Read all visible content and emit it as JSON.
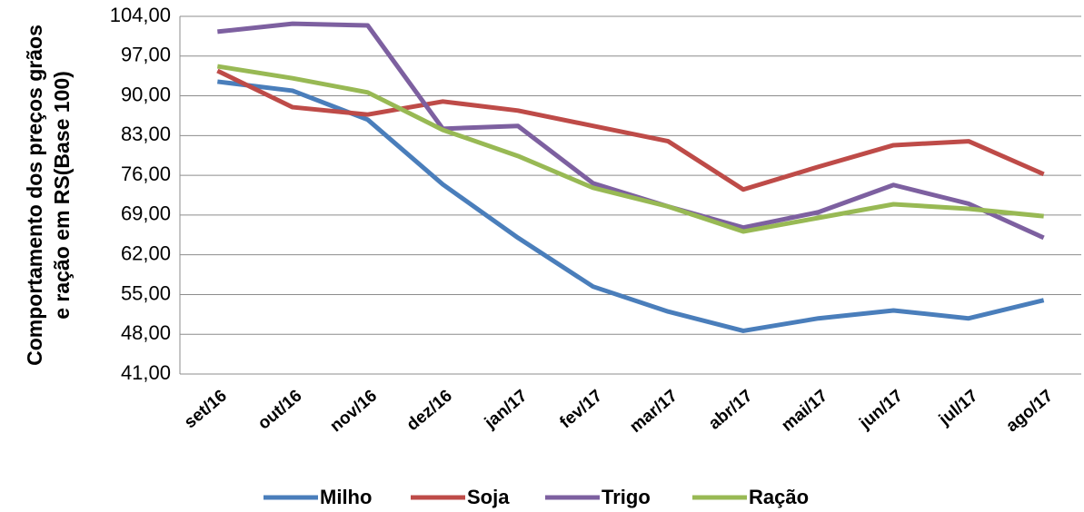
{
  "chart_data": {
    "type": "line",
    "y_label": [
      "Comportamento dos preços grãos",
      "e ração em RS(Base 100)"
    ],
    "categories": [
      "set/16",
      "out/16",
      "nov/16",
      "dez/16",
      "jan/17",
      "fev/17",
      "mar/17",
      "abr/17",
      "mai/17",
      "jun/17",
      "jul/17",
      "ago/17"
    ],
    "series": [
      {
        "name": "Milho",
        "color": "#4a7ebb",
        "values": [
          92.5,
          90.9,
          85.8,
          74.4,
          65,
          56.4,
          52,
          48.6,
          50.8,
          52.2,
          50.8,
          54
        ]
      },
      {
        "name": "Soja",
        "color": "#be4b48",
        "values": [
          94.4,
          88,
          86.7,
          89,
          87.4,
          84.7,
          82,
          73.5,
          77.5,
          81.3,
          82,
          76.2
        ]
      },
      {
        "name": "Trigo",
        "color": "#7d60a0",
        "values": [
          101.3,
          102.7,
          102.4,
          84.2,
          84.7,
          74.6,
          70.5,
          66.8,
          69.5,
          74.3,
          71,
          65
        ]
      },
      {
        "name": "Ração",
        "color": "#98b954",
        "values": [
          95.2,
          93.1,
          90.6,
          84,
          79.4,
          73.8,
          70.5,
          66.1,
          68.5,
          70.9,
          70.1,
          68.8
        ]
      }
    ],
    "ylim": [
      41,
      104
    ],
    "yticks": [
      {
        "value": 41,
        "label": "41,00"
      },
      {
        "value": 48,
        "label": "48,00"
      },
      {
        "value": 55,
        "label": "55,00"
      },
      {
        "value": 62,
        "label": "62,00"
      },
      {
        "value": 69,
        "label": "69,00"
      },
      {
        "value": 76,
        "label": "76,00"
      },
      {
        "value": 83,
        "label": "83,00"
      },
      {
        "value": 90,
        "label": "90,00"
      },
      {
        "value": 97,
        "label": "97,00"
      },
      {
        "value": 104,
        "label": "104,00"
      }
    ],
    "grid": true,
    "legend": "bottom"
  }
}
